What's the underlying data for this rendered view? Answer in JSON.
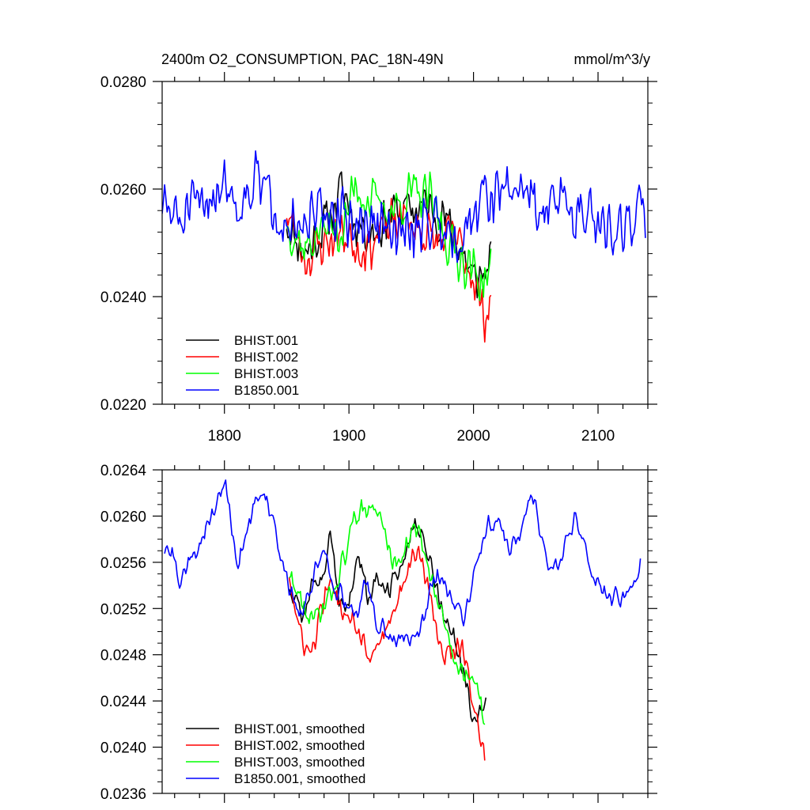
{
  "figure": {
    "title_left": "2400m O2_CONSUMPTION, PAC_18N-49N",
    "title_right": "mmol/m^3/y"
  },
  "chart_data": [
    {
      "type": "line",
      "title": "2400m O2_CONSUMPTION, PAC_18N-49N",
      "units": "mmol/m^3/y",
      "xlim": [
        1750,
        2140
      ],
      "ylim": [
        0.022,
        0.028
      ],
      "xticks": [
        1800,
        1900,
        2000,
        2100
      ],
      "xtick_labels": [
        "1800",
        "1900",
        "2000",
        "2100"
      ],
      "yticks": [
        0.022,
        0.024,
        0.026,
        0.028
      ],
      "ytick_labels": [
        "0.0220",
        "0.0240",
        "0.0260",
        "0.0280"
      ],
      "legend_position": "bottom-left",
      "series": [
        {
          "name": "BHIST.001",
          "color": "#000000",
          "x_start": 1850,
          "step": 1,
          "noise_seed": 11,
          "noise_amp": 0.00055,
          "anchors": [
            [
              1850,
              0.0254
            ],
            [
              1865,
              0.0248
            ],
            [
              1880,
              0.0253
            ],
            [
              1895,
              0.026
            ],
            [
              1905,
              0.0254
            ],
            [
              1920,
              0.0252
            ],
            [
              1935,
              0.0256
            ],
            [
              1950,
              0.0256
            ],
            [
              1960,
              0.0257
            ],
            [
              1975,
              0.0255
            ],
            [
              1990,
              0.0249
            ],
            [
              2000,
              0.0243
            ],
            [
              2007,
              0.0244
            ],
            [
              2014,
              0.0246
            ]
          ]
        },
        {
          "name": "BHIST.002",
          "color": "#ff0000",
          "x_start": 1850,
          "step": 1,
          "noise_seed": 23,
          "noise_amp": 0.00055,
          "anchors": [
            [
              1850,
              0.0256
            ],
            [
              1865,
              0.0247
            ],
            [
              1880,
              0.025
            ],
            [
              1895,
              0.0252
            ],
            [
              1910,
              0.0249
            ],
            [
              1925,
              0.0251
            ],
            [
              1940,
              0.0255
            ],
            [
              1955,
              0.0253
            ],
            [
              1970,
              0.025
            ],
            [
              1985,
              0.0251
            ],
            [
              2000,
              0.0244
            ],
            [
              2008,
              0.0236
            ],
            [
              2014,
              0.024
            ]
          ]
        },
        {
          "name": "BHIST.003",
          "color": "#00ff00",
          "x_start": 1850,
          "step": 1,
          "noise_seed": 37,
          "noise_amp": 0.00055,
          "anchors": [
            [
              1850,
              0.0254
            ],
            [
              1865,
              0.0249
            ],
            [
              1880,
              0.0253
            ],
            [
              1895,
              0.0252
            ],
            [
              1905,
              0.0261
            ],
            [
              1915,
              0.0258
            ],
            [
              1935,
              0.0256
            ],
            [
              1950,
              0.0259
            ],
            [
              1965,
              0.0258
            ],
            [
              1980,
              0.025
            ],
            [
              1995,
              0.0246
            ],
            [
              2005,
              0.0243
            ],
            [
              2014,
              0.0245
            ]
          ]
        },
        {
          "name": "B1850.001",
          "color": "#0000ff",
          "x_start": 1750,
          "step": 1,
          "noise_seed": 51,
          "noise_amp": 0.00065,
          "anchors": [
            [
              1750,
              0.0257
            ],
            [
              1765,
              0.0254
            ],
            [
              1785,
              0.0258
            ],
            [
              1800,
              0.0262
            ],
            [
              1810,
              0.0257
            ],
            [
              1825,
              0.0262
            ],
            [
              1845,
              0.0256
            ],
            [
              1860,
              0.0251
            ],
            [
              1880,
              0.0256
            ],
            [
              1900,
              0.0254
            ],
            [
              1920,
              0.0253
            ],
            [
              1940,
              0.0251
            ],
            [
              1960,
              0.0254
            ],
            [
              1975,
              0.0254
            ],
            [
              1990,
              0.0251
            ],
            [
              2005,
              0.0258
            ],
            [
              2020,
              0.0259
            ],
            [
              2040,
              0.0261
            ],
            [
              2055,
              0.0256
            ],
            [
              2075,
              0.0258
            ],
            [
              2095,
              0.0254
            ],
            [
              2110,
              0.0253
            ],
            [
              2125,
              0.0254
            ],
            [
              2138,
              0.0256
            ]
          ]
        }
      ]
    },
    {
      "type": "line",
      "title": "",
      "xlim": [
        1750,
        2140
      ],
      "ylim": [
        0.0236,
        0.0264
      ],
      "xticks": [
        1800,
        1900,
        2000,
        2100
      ],
      "yticks": [
        0.0236,
        0.024,
        0.0244,
        0.0248,
        0.0252,
        0.0256,
        0.026,
        0.0264
      ],
      "ytick_labels": [
        "0.0236",
        "0.0240",
        "0.0244",
        "0.0248",
        "0.0252",
        "0.0256",
        "0.0260",
        "0.0264"
      ],
      "legend_position": "bottom-left",
      "series": [
        {
          "name": "BHIST.001, smoothed",
          "color": "#000000",
          "x_start": 1852,
          "step": 1,
          "noise_seed": 12,
          "noise_amp": 0.00012,
          "anchors": [
            [
              1852,
              0.0254
            ],
            [
              1858,
              0.0253
            ],
            [
              1863,
              0.0251
            ],
            [
              1870,
              0.0254
            ],
            [
              1880,
              0.0255
            ],
            [
              1885,
              0.0258
            ],
            [
              1892,
              0.0253
            ],
            [
              1900,
              0.0252
            ],
            [
              1908,
              0.0257
            ],
            [
              1915,
              0.0253
            ],
            [
              1922,
              0.0255
            ],
            [
              1930,
              0.0253
            ],
            [
              1940,
              0.0255
            ],
            [
              1950,
              0.0259
            ],
            [
              1958,
              0.0258
            ],
            [
              1965,
              0.0256
            ],
            [
              1975,
              0.0252
            ],
            [
              1985,
              0.0249
            ],
            [
              1995,
              0.0245
            ],
            [
              2000,
              0.0242
            ],
            [
              2005,
              0.0243
            ],
            [
              2010,
              0.0244
            ]
          ]
        },
        {
          "name": "BHIST.002, smoothed",
          "color": "#ff0000",
          "x_start": 1852,
          "step": 1,
          "noise_seed": 24,
          "noise_amp": 0.00012,
          "anchors": [
            [
              1852,
              0.0255
            ],
            [
              1858,
              0.0251
            ],
            [
              1863,
              0.0249
            ],
            [
              1870,
              0.0248
            ],
            [
              1878,
              0.0252
            ],
            [
              1885,
              0.0254
            ],
            [
              1895,
              0.0252
            ],
            [
              1905,
              0.0251
            ],
            [
              1912,
              0.0249
            ],
            [
              1918,
              0.0248
            ],
            [
              1925,
              0.0249
            ],
            [
              1932,
              0.0251
            ],
            [
              1940,
              0.0253
            ],
            [
              1950,
              0.0256
            ],
            [
              1956,
              0.0257
            ],
            [
              1965,
              0.0253
            ],
            [
              1975,
              0.0248
            ],
            [
              1990,
              0.0249
            ],
            [
              2000,
              0.0244
            ],
            [
              2005,
              0.0241
            ],
            [
              2009,
              0.0239
            ]
          ]
        },
        {
          "name": "BHIST.003, smoothed",
          "color": "#00ff00",
          "x_start": 1852,
          "step": 1,
          "noise_seed": 38,
          "noise_amp": 0.00012,
          "anchors": [
            [
              1852,
              0.0255
            ],
            [
              1860,
              0.0253
            ],
            [
              1868,
              0.0251
            ],
            [
              1875,
              0.0251
            ],
            [
              1885,
              0.0253
            ],
            [
              1895,
              0.0256
            ],
            [
              1905,
              0.026
            ],
            [
              1912,
              0.0261
            ],
            [
              1925,
              0.026
            ],
            [
              1935,
              0.0256
            ],
            [
              1945,
              0.0257
            ],
            [
              1952,
              0.0259
            ],
            [
              1958,
              0.0258
            ],
            [
              1965,
              0.0255
            ],
            [
              1975,
              0.0251
            ],
            [
              1985,
              0.0248
            ],
            [
              1993,
              0.0246
            ],
            [
              2000,
              0.0246
            ],
            [
              2005,
              0.0244
            ],
            [
              2009,
              0.0242
            ]
          ]
        },
        {
          "name": "B1850.001, smoothed",
          "color": "#0000ff",
          "x_start": 1752,
          "step": 1,
          "noise_seed": 52,
          "noise_amp": 0.0001,
          "anchors": [
            [
              1752,
              0.0257
            ],
            [
              1758,
              0.0257
            ],
            [
              1764,
              0.0254
            ],
            [
              1772,
              0.0256
            ],
            [
              1782,
              0.0258
            ],
            [
              1790,
              0.026
            ],
            [
              1800,
              0.0263
            ],
            [
              1805,
              0.026
            ],
            [
              1810,
              0.0255
            ],
            [
              1818,
              0.0259
            ],
            [
              1828,
              0.0262
            ],
            [
              1835,
              0.0261
            ],
            [
              1845,
              0.0257
            ],
            [
              1852,
              0.0254
            ],
            [
              1860,
              0.0251
            ],
            [
              1866,
              0.0253
            ],
            [
              1875,
              0.0256
            ],
            [
              1880,
              0.0257
            ],
            [
              1888,
              0.0254
            ],
            [
              1895,
              0.0253
            ],
            [
              1900,
              0.0252
            ],
            [
              1908,
              0.0252
            ],
            [
              1915,
              0.0255
            ],
            [
              1922,
              0.0251
            ],
            [
              1930,
              0.025
            ],
            [
              1938,
              0.0249
            ],
            [
              1945,
              0.025
            ],
            [
              1952,
              0.0249
            ],
            [
              1960,
              0.0251
            ],
            [
              1966,
              0.0254
            ],
            [
              1975,
              0.0255
            ],
            [
              1985,
              0.0252
            ],
            [
              1992,
              0.0251
            ],
            [
              2000,
              0.0255
            ],
            [
              2010,
              0.0259
            ],
            [
              2020,
              0.026
            ],
            [
              2030,
              0.0257
            ],
            [
              2040,
              0.0259
            ],
            [
              2048,
              0.0262
            ],
            [
              2055,
              0.0258
            ],
            [
              2062,
              0.0255
            ],
            [
              2072,
              0.0257
            ],
            [
              2082,
              0.026
            ],
            [
              2090,
              0.0257
            ],
            [
              2100,
              0.0254
            ],
            [
              2110,
              0.0253
            ],
            [
              2120,
              0.0253
            ],
            [
              2128,
              0.0254
            ],
            [
              2134,
              0.0256
            ]
          ]
        }
      ]
    }
  ]
}
